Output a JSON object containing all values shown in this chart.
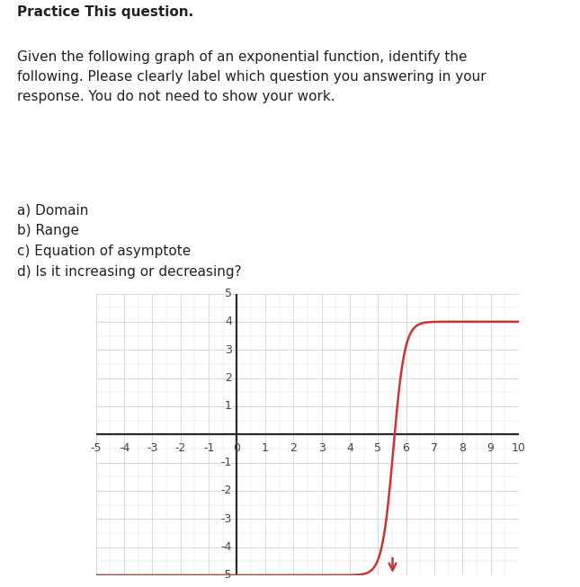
{
  "title_bold": "Practice This question.",
  "title_normal": "Given the following graph of an exponential function, identify the\nfollowing. Please clearly label which question you answering in your\nresponse. You do not need to show your work.",
  "items": "\na) Domain\nb) Range\nc) Equation of asymptote\nd) Is it increasing or decreasing?",
  "xmin": -5,
  "xmax": 10,
  "ymin": -5,
  "ymax": 5,
  "xticks": [
    -5,
    -4,
    -3,
    -2,
    -1,
    0,
    1,
    2,
    3,
    4,
    5,
    6,
    7,
    8,
    9,
    10
  ],
  "yticks": [
    -5,
    -4,
    -3,
    -2,
    -1,
    1,
    2,
    3,
    4,
    5
  ],
  "curve_color": "#cd3333",
  "background_color": "#ffffff",
  "grid_minor_color": "#dddddd",
  "grid_major_color": "#cccccc",
  "axis_color": "#2a2a2a",
  "text_color": "#222222",
  "curve_x_center": 5.55,
  "curve_steepness": 5.0,
  "font_size_title": 11,
  "font_size_tick": 9
}
